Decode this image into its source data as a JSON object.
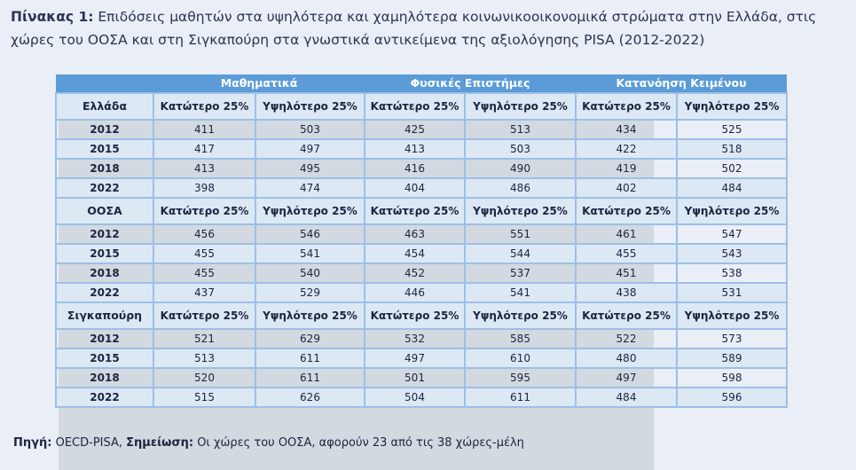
{
  "title": {
    "label": "Πίνακας 1:",
    "text": "Επιδόσεις μαθητών στα υψηλότερα και χαμηλότερα κοινωνικοοικονομικά στρώματα στην Ελλάδα, στις χώρες του ΟΟΣΑ και στη Σιγκαπούρη στα γνωστικά αντικείμενα της αξιολόγησης PISA (2012-2022)"
  },
  "subjects": [
    "Μαθηματικά",
    "Φυσικές Επιστήμες",
    "Κατανόηση Κειμένου"
  ],
  "col_low": "Κατώτερο 25%",
  "col_high": "Υψηλότερο 25%",
  "groups": [
    {
      "name": "Ελλάδα",
      "rows": [
        {
          "year": "2012",
          "v": [
            "411",
            "503",
            "425",
            "513",
            "434",
            "525"
          ]
        },
        {
          "year": "2015",
          "v": [
            "417",
            "497",
            "413",
            "503",
            "422",
            "518"
          ]
        },
        {
          "year": "2018",
          "v": [
            "413",
            "495",
            "416",
            "490",
            "419",
            "502"
          ]
        },
        {
          "year": "2022",
          "v": [
            "398",
            "474",
            "404",
            "486",
            "402",
            "484"
          ]
        }
      ]
    },
    {
      "name": "ΟΟΣΑ",
      "rows": [
        {
          "year": "2012",
          "v": [
            "456",
            "546",
            "463",
            "551",
            "461",
            "547"
          ]
        },
        {
          "year": "2015",
          "v": [
            "455",
            "541",
            "454",
            "544",
            "455",
            "543"
          ]
        },
        {
          "year": "2018",
          "v": [
            "455",
            "540",
            "452",
            "537",
            "451",
            "538"
          ]
        },
        {
          "year": "2022",
          "v": [
            "437",
            "529",
            "446",
            "541",
            "438",
            "531"
          ]
        }
      ]
    },
    {
      "name": "Σιγκαπούρη",
      "rows": [
        {
          "year": "2012",
          "v": [
            "521",
            "629",
            "532",
            "585",
            "522",
            "573"
          ]
        },
        {
          "year": "2015",
          "v": [
            "513",
            "611",
            "497",
            "610",
            "480",
            "589"
          ]
        },
        {
          "year": "2018",
          "v": [
            "520",
            "611",
            "501",
            "595",
            "497",
            "598"
          ]
        },
        {
          "year": "2022",
          "v": [
            "515",
            "626",
            "504",
            "611",
            "484",
            "596"
          ]
        }
      ]
    }
  ],
  "footer": {
    "source_label": "Πηγή:",
    "source": "OECD-PISA,",
    "note_label": "Σημείωση:",
    "note": "Οι χώρες του ΟΟΣΑ, αφορούν 23 από τις 38 χώρες-μέλη"
  }
}
